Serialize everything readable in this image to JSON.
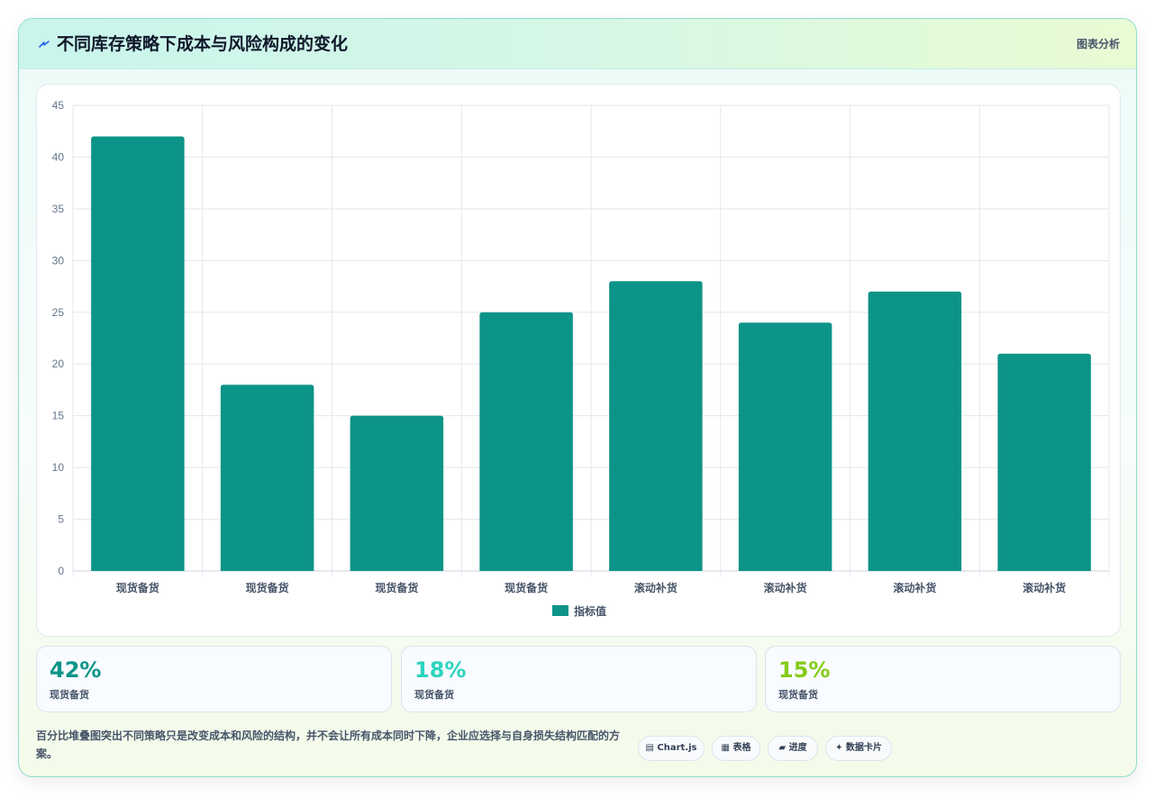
{
  "header": {
    "title": "不同库存策略下成本与风险构成的变化",
    "link_label": "图表分析",
    "icon": "lightning-icon"
  },
  "chart_data": {
    "type": "bar",
    "categories": [
      "现货备货",
      "现货备货",
      "现货备货",
      "现货备货",
      "滚动补货",
      "滚动补货",
      "滚动补货",
      "滚动补货"
    ],
    "series": [
      {
        "name": "指标值",
        "values": [
          42,
          18,
          15,
          25,
          28,
          24,
          27,
          21
        ],
        "color": "#0d9488"
      }
    ],
    "yticks": [
      0,
      5,
      10,
      15,
      20,
      25,
      30,
      35,
      40,
      45
    ],
    "ylim": [
      0,
      45
    ],
    "grid": true,
    "legend": "bottom"
  },
  "stats": [
    {
      "value": "42%",
      "label": "现货备货",
      "color": "#0d9488"
    },
    {
      "value": "18%",
      "label": "现货备货",
      "color": "#2dd4bf"
    },
    {
      "value": "15%",
      "label": "现货备货",
      "color": "#84cc16"
    }
  ],
  "footnote": "百分比堆叠图突出不同策略只是改变成本和风险的结构，并不会让所有成本同时下降，企业应选择与自身损失结构匹配的方案。",
  "pills": [
    {
      "label": "▤ Chart.js",
      "icon": "chart-icon"
    },
    {
      "label": "▦ 表格",
      "icon": "table-icon"
    },
    {
      "label": "▰ 进度",
      "icon": "progress-icon"
    },
    {
      "label": "✦ 数据卡片",
      "icon": "card-icon"
    }
  ]
}
